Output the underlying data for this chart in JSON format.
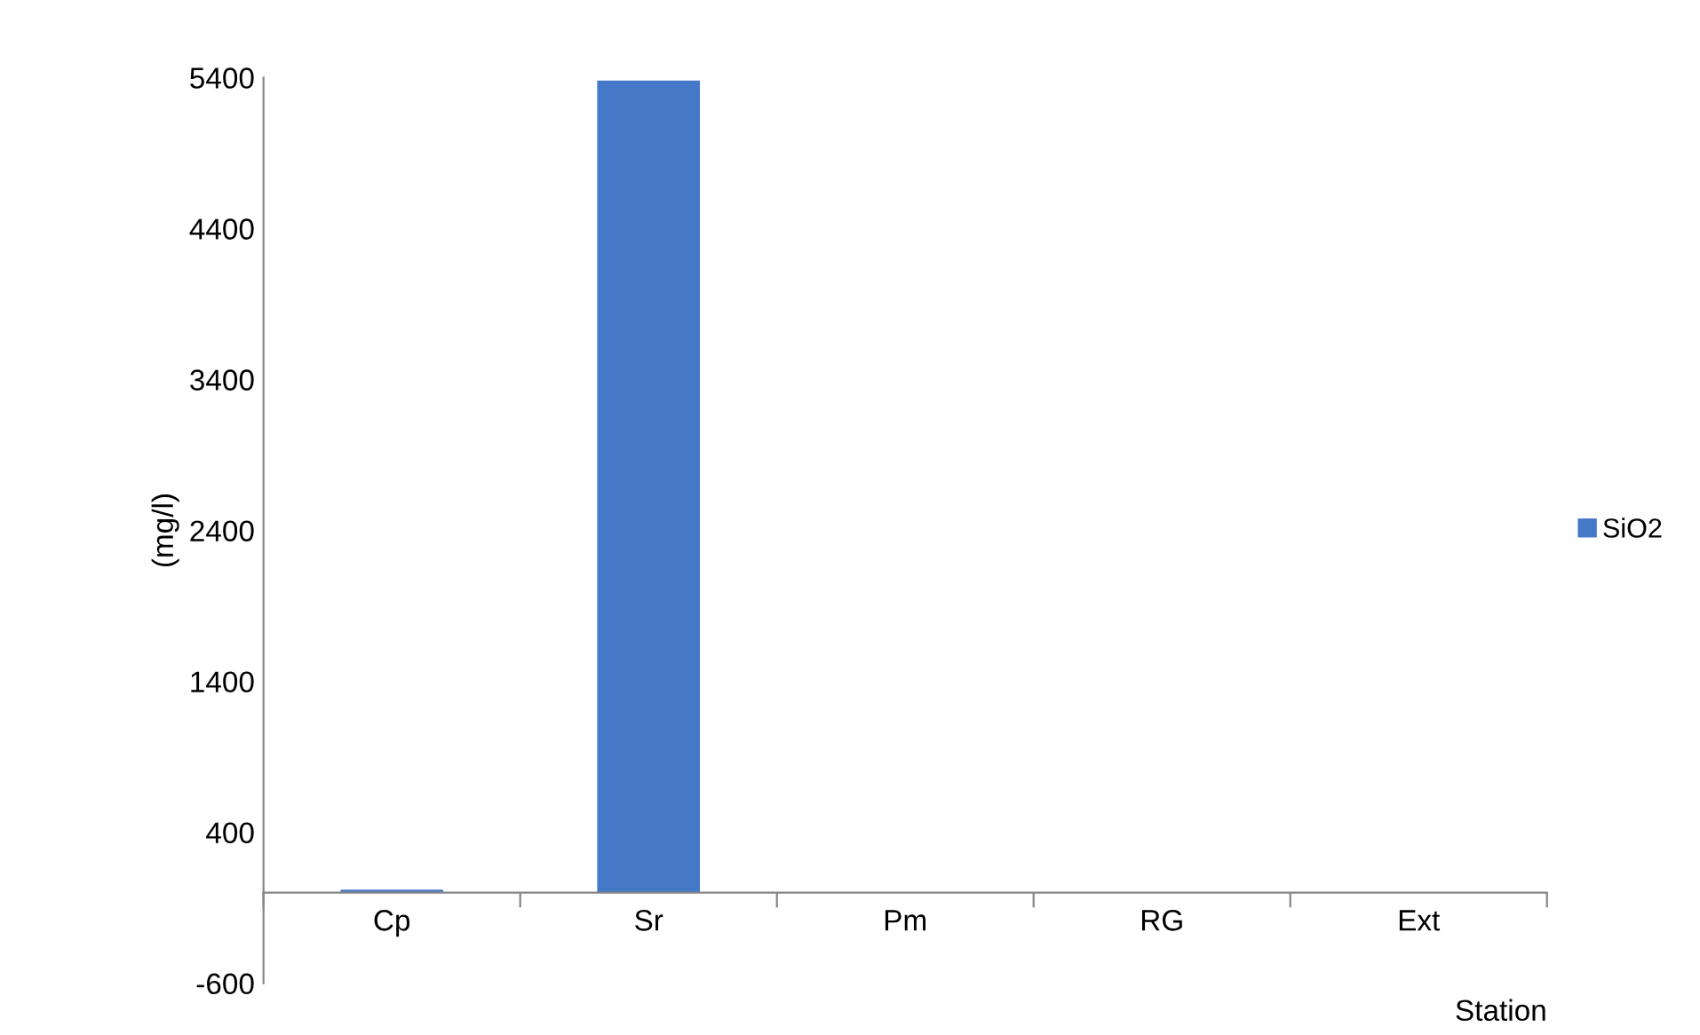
{
  "chart_data": {
    "type": "bar",
    "xlabel": "Station",
    "ylabel": "(mg/l)",
    "categories": [
      "Cp",
      "Sr",
      "Pm",
      "RG",
      "Ext"
    ],
    "series": [
      {
        "name": "SiO2",
        "color": "#4479c8",
        "values": [
          20,
          5380,
          0,
          0,
          0
        ]
      }
    ],
    "ylim": [
      -600,
      5400
    ],
    "yticks": [
      -600,
      400,
      1400,
      2400,
      3400,
      4400,
      5400
    ],
    "grid": false,
    "legend": "right"
  }
}
